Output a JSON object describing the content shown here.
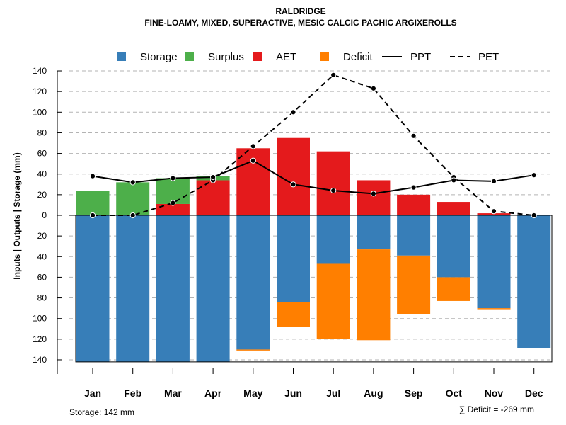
{
  "chart_data": {
    "type": "bar",
    "title": "RALDRIDGE",
    "subtitle": "FINE-LOAMY, MIXED, SUPERACTIVE, MESIC CALCIC PACHIC ARGIXEROLLS",
    "ylabel": "Inputs | Outputs | Storage    (mm)",
    "ylim": [
      -140,
      140
    ],
    "yticks": [
      140,
      120,
      100,
      80,
      60,
      40,
      20,
      0,
      20,
      40,
      60,
      80,
      100,
      120,
      140
    ],
    "grid": "horizontal dashed",
    "legend_position": "top",
    "categories": [
      "Jan",
      "Feb",
      "Mar",
      "Apr",
      "May",
      "Jun",
      "Jul",
      "Aug",
      "Sep",
      "Oct",
      "Nov",
      "Dec"
    ],
    "series": [
      {
        "name": "Storage",
        "color": "#377EB8",
        "kind": "bar-below",
        "values": [
          142,
          142,
          142,
          142,
          130,
          84,
          47,
          33,
          39,
          60,
          90,
          129
        ]
      },
      {
        "name": "Surplus",
        "color": "#4DAF4A",
        "kind": "bar-above-stacked",
        "values": [
          24,
          32,
          25,
          4,
          0,
          0,
          0,
          0,
          0,
          0,
          0,
          0
        ]
      },
      {
        "name": "AET",
        "color": "#E41A1C",
        "kind": "bar-above",
        "values": [
          0,
          0,
          11,
          34,
          65,
          75,
          62,
          34,
          20,
          13,
          2,
          0
        ]
      },
      {
        "name": "Deficit",
        "color": "#FF7F00",
        "kind": "bar-below-stacked",
        "values": [
          0,
          0,
          0,
          0,
          1,
          24,
          73,
          88,
          57,
          23,
          1,
          0
        ]
      },
      {
        "name": "PPT",
        "color": "#000000",
        "kind": "line-solid",
        "values": [
          38,
          32,
          36,
          37,
          53,
          30,
          24,
          21,
          27,
          34,
          33,
          39
        ]
      },
      {
        "name": "PET",
        "color": "#000000",
        "kind": "line-dashed",
        "values": [
          0,
          0,
          12,
          34,
          67,
          100,
          136,
          123,
          77,
          37,
          4,
          0
        ]
      }
    ],
    "storage_note": "Storage: 142 mm",
    "deficit_note": "∑ Deficit = -269 mm"
  }
}
